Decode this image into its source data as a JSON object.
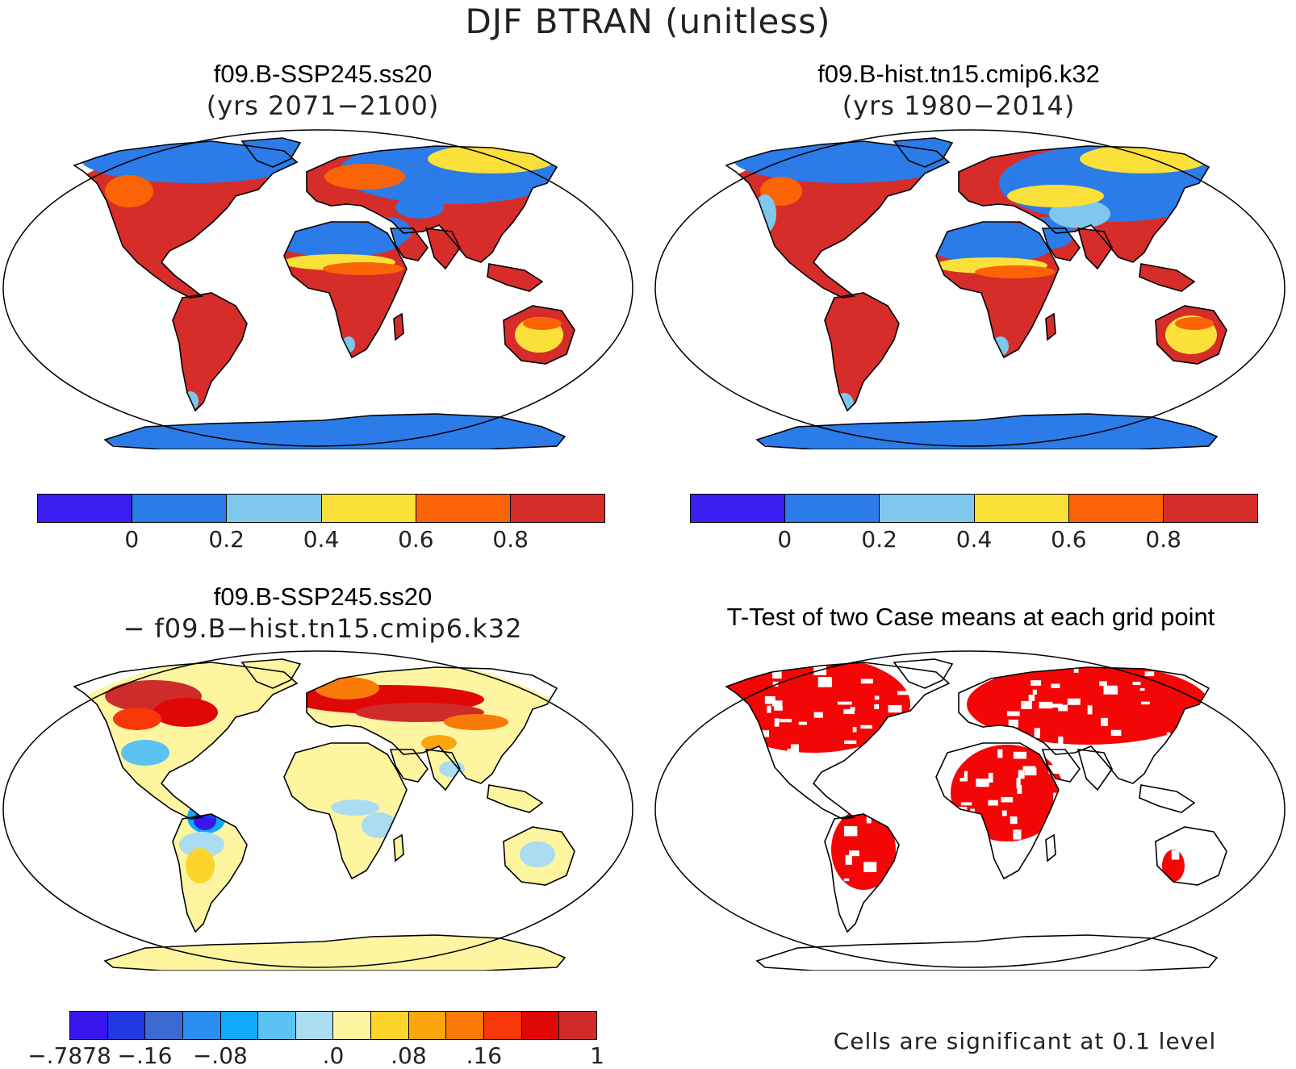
{
  "title": "DJF BTRAN (unitless)",
  "panels": {
    "top_left": {
      "title": "f09.B-SSP245.ss20",
      "subtitle": "(yrs 2071−2100)"
    },
    "top_right": {
      "title": "f09.B-hist.tn15.cmip6.k32",
      "subtitle": "(yrs 1980−2014)"
    },
    "bottom_left": {
      "title": "f09.B-SSP245.ss20",
      "subtitle": "− f09.B−hist.tn15.cmip6.k32"
    },
    "bottom_right": {
      "title": "T-Test of two Case means at each grid point",
      "note": "Cells are significant at 0.1 level"
    }
  },
  "colorbar_abs": {
    "colors": [
      "#3b1ef2",
      "#2b7be8",
      "#7ec8ee",
      "#fbe03a",
      "#fb6406",
      "#d62d2a"
    ],
    "ticks": [
      "0",
      "0.2",
      "0.4",
      "0.6",
      "0.8"
    ]
  },
  "colorbar_diff": {
    "colors": [
      "#3a16ee",
      "#2238e2",
      "#3a6ad2",
      "#2a8ef0",
      "#10aaf8",
      "#5cc2f2",
      "#aadcf2",
      "#fdf5a0",
      "#fcd42a",
      "#fba60c",
      "#fa7a08",
      "#f9380a",
      "#e00707",
      "#cf2b2b"
    ],
    "ticks": [
      "−.7878",
      "−.16",
      "−.08",
      ".0",
      ".08",
      ".16",
      "1"
    ]
  },
  "significance_color": "#f40606",
  "chart_data": [
    {
      "type": "heatmap",
      "title": "f09.B-SSP245.ss20",
      "subtitle": "(yrs 2071−2100)",
      "variable": "DJF BTRAN (unitless)",
      "levels": [
        0,
        0.2,
        0.4,
        0.6,
        0.8
      ]
    },
    {
      "type": "heatmap",
      "title": "f09.B-hist.tn15.cmip6.k32",
      "subtitle": "(yrs 1980−2014)",
      "variable": "DJF BTRAN (unitless)",
      "levels": [
        0,
        0.2,
        0.4,
        0.6,
        0.8
      ]
    },
    {
      "type": "heatmap",
      "title": "f09.B-SSP245.ss20 − f09.B−hist.tn15.cmip6.k32",
      "levels": [
        -0.7878,
        -0.16,
        -0.08,
        0.0,
        0.08,
        0.16,
        1
      ]
    },
    {
      "type": "heatmap",
      "title": "T-Test of two Case means at each grid point",
      "note": "Cells are significant at 0.1 level",
      "significance_level": 0.1
    }
  ]
}
